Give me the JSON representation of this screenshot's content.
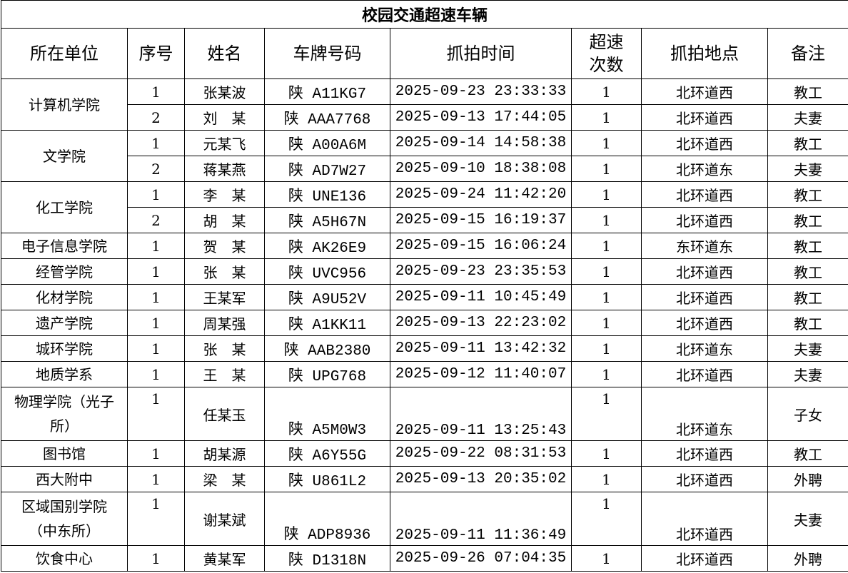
{
  "title": "校园交通超速车辆",
  "headers": [
    "所在单位",
    "序号",
    "姓名",
    "车牌号码",
    "抓拍时间",
    "超速次数",
    "抓拍地点",
    "备注"
  ],
  "groups": [
    {
      "unit": "计算机学院",
      "rows": [
        {
          "seq": "1",
          "name": "张某波",
          "plate": "陕 A11KG7",
          "time": "2025-09-23 23:33:33",
          "count": "1",
          "location": "北环道西",
          "note": "教工"
        },
        {
          "seq": "2",
          "name": "刘　某",
          "plate": "陕 AAA7768",
          "time": "2025-09-13 17:44:05",
          "count": "1",
          "location": "北环道西",
          "note": "夫妻"
        }
      ]
    },
    {
      "unit": "文学院",
      "rows": [
        {
          "seq": "1",
          "name": "元某飞",
          "plate": "陕 A00A6M",
          "time": "2025-09-14 14:58:38",
          "count": "1",
          "location": "北环道西",
          "note": "教工"
        },
        {
          "seq": "2",
          "name": "蒋某燕",
          "plate": "陕 AD7W27",
          "time": "2025-09-10 18:38:08",
          "count": "1",
          "location": "北环道东",
          "note": "夫妻"
        }
      ]
    },
    {
      "unit": "化工学院",
      "rows": [
        {
          "seq": "1",
          "name": "李　某",
          "plate": "陕 UNE136",
          "time": "2025-09-24 11:42:20",
          "count": "1",
          "location": "北环道西",
          "note": "教工"
        },
        {
          "seq": "2",
          "name": "胡　某",
          "plate": "陕 A5H67N",
          "time": "2025-09-15 16:19:37",
          "count": "1",
          "location": "北环道西",
          "note": "教工"
        }
      ]
    },
    {
      "unit": "电子信息学院",
      "rows": [
        {
          "seq": "1",
          "name": "贺　某",
          "plate": "陕 AK26E9",
          "time": "2025-09-15 16:06:24",
          "count": "1",
          "location": "东环道东",
          "note": "教工"
        }
      ]
    },
    {
      "unit": "经管学院",
      "rows": [
        {
          "seq": "1",
          "name": "张　某",
          "plate": "陕 UVC956",
          "time": "2025-09-23 23:35:53",
          "count": "1",
          "location": "北环道西",
          "note": "教工"
        }
      ]
    },
    {
      "unit": "化材学院",
      "rows": [
        {
          "seq": "1",
          "name": "王某军",
          "plate": "陕 A9U52V",
          "time": "2025-09-11 10:45:49",
          "count": "1",
          "location": "北环道西",
          "note": "教工"
        }
      ]
    },
    {
      "unit": "遗产学院",
      "rows": [
        {
          "seq": "1",
          "name": "周某强",
          "plate": "陕 A1KK11",
          "time": "2025-09-13 22:23:02",
          "count": "1",
          "location": "北环道西",
          "note": "教工"
        }
      ]
    },
    {
      "unit": "城环学院",
      "rows": [
        {
          "seq": "1",
          "name": "张　某",
          "plate": "陕 AAB2380",
          "time": "2025-09-11 13:42:32",
          "count": "1",
          "location": "北环道东",
          "note": "夫妻"
        }
      ]
    },
    {
      "unit": "地质学系",
      "rows": [
        {
          "seq": "1",
          "name": "王　某",
          "plate": "陕 UPG768",
          "time": "2025-09-12 11:40:07",
          "count": "1",
          "location": "北环道西",
          "note": "夫妻"
        }
      ]
    },
    {
      "unit": "物理学院（光子所）",
      "tall": true,
      "rows": [
        {
          "seq": "1",
          "name": "任某玉",
          "plate": "陕 A5M0W3",
          "time": "2025-09-11 13:25:43",
          "count": "1",
          "location": "北环道东",
          "note": "子女"
        }
      ]
    },
    {
      "unit": "图书馆",
      "rows": [
        {
          "seq": "1",
          "name": "胡某源",
          "plate": "陕 A6Y55G",
          "time": "2025-09-22 08:31:53",
          "count": "1",
          "location": "北环道西",
          "note": "教工"
        }
      ]
    },
    {
      "unit": "西大附中",
      "rows": [
        {
          "seq": "1",
          "name": "梁　某",
          "plate": "陕 U861L2",
          "time": "2025-09-13 20:35:02",
          "count": "1",
          "location": "北环道西",
          "note": "外聘"
        }
      ]
    },
    {
      "unit": "区域国别学院（中东所）",
      "tall": true,
      "rows": [
        {
          "seq": "1",
          "name": "谢某斌",
          "plate": "陕 ADP8936",
          "time": "2025-09-11 11:36:49",
          "count": "1",
          "location": "北环道西",
          "note": "夫妻"
        }
      ]
    },
    {
      "unit": "饮食中心",
      "rows": [
        {
          "seq": "1",
          "name": "黄某军",
          "plate": "陕 D1318N",
          "time": "2025-09-26 07:04:35",
          "count": "1",
          "location": "北环道西",
          "note": "外聘"
        }
      ]
    }
  ]
}
